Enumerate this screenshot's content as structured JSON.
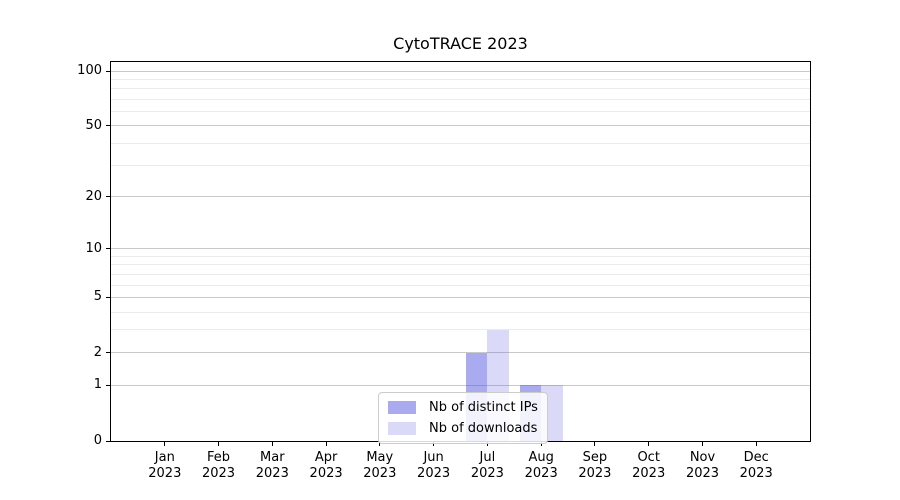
{
  "chart_data": {
    "type": "bar",
    "title": "CytoTRACE 2023",
    "year": "2023",
    "months": [
      "Jan",
      "Feb",
      "Mar",
      "Apr",
      "May",
      "Jun",
      "Jul",
      "Aug",
      "Sep",
      "Oct",
      "Nov",
      "Dec"
    ],
    "categories": [
      "Jan 2023",
      "Feb 2023",
      "Mar 2023",
      "Apr 2023",
      "May 2023",
      "Jun 2023",
      "Jul 2023",
      "Aug 2023",
      "Sep 2023",
      "Oct 2023",
      "Nov 2023",
      "Dec 2023"
    ],
    "series": [
      {
        "name": "Nb of distinct IPs",
        "key": "distinct-ips",
        "color": "rgba(85,85,225,0.5)",
        "values": [
          0,
          0,
          0,
          0,
          0,
          0,
          2,
          1,
          0,
          0,
          0,
          0
        ]
      },
      {
        "name": "Nb of downloads",
        "key": "downloads",
        "color": "rgba(85,85,225,0.22)",
        "values": [
          0,
          0,
          0,
          0,
          0,
          0,
          3,
          1,
          0,
          0,
          0,
          0
        ]
      }
    ],
    "xlabel": "",
    "ylabel": "",
    "yscale": "log1p",
    "ylim": [
      0,
      112
    ],
    "y_major_ticks": [
      0,
      1,
      2,
      5,
      10,
      20,
      50,
      100
    ],
    "y_minor_ticks": [
      3,
      4,
      6,
      7,
      8,
      9,
      30,
      40,
      60,
      70,
      80,
      90
    ],
    "grid": true,
    "legend_position": "lower center"
  },
  "colors": {
    "background": "#ffffff",
    "axis": "#000000",
    "grid_major": "#c9c9c9",
    "grid_minor": "#ebebeb",
    "legend_border": "#cccccc",
    "bar_distinct_ips": "rgba(85,85,225,0.5)",
    "bar_downloads": "rgba(85,85,225,0.22)"
  }
}
